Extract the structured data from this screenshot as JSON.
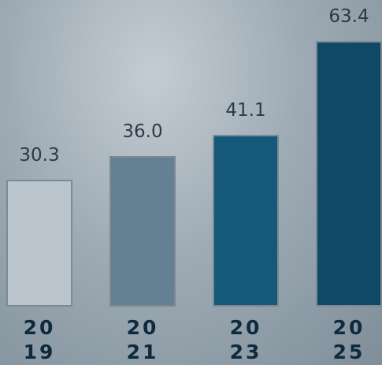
{
  "chart_data": {
    "type": "bar",
    "categories": [
      "2019",
      "2021",
      "2023",
      "2025"
    ],
    "values": [
      30.3,
      36.0,
      41.1,
      63.4
    ],
    "value_labels": [
      "30.3",
      "36.0",
      "41.1",
      "63.4"
    ],
    "colors": [
      "#b9c4cd",
      "#657f93",
      "#14597a",
      "#0f4966"
    ]
  }
}
